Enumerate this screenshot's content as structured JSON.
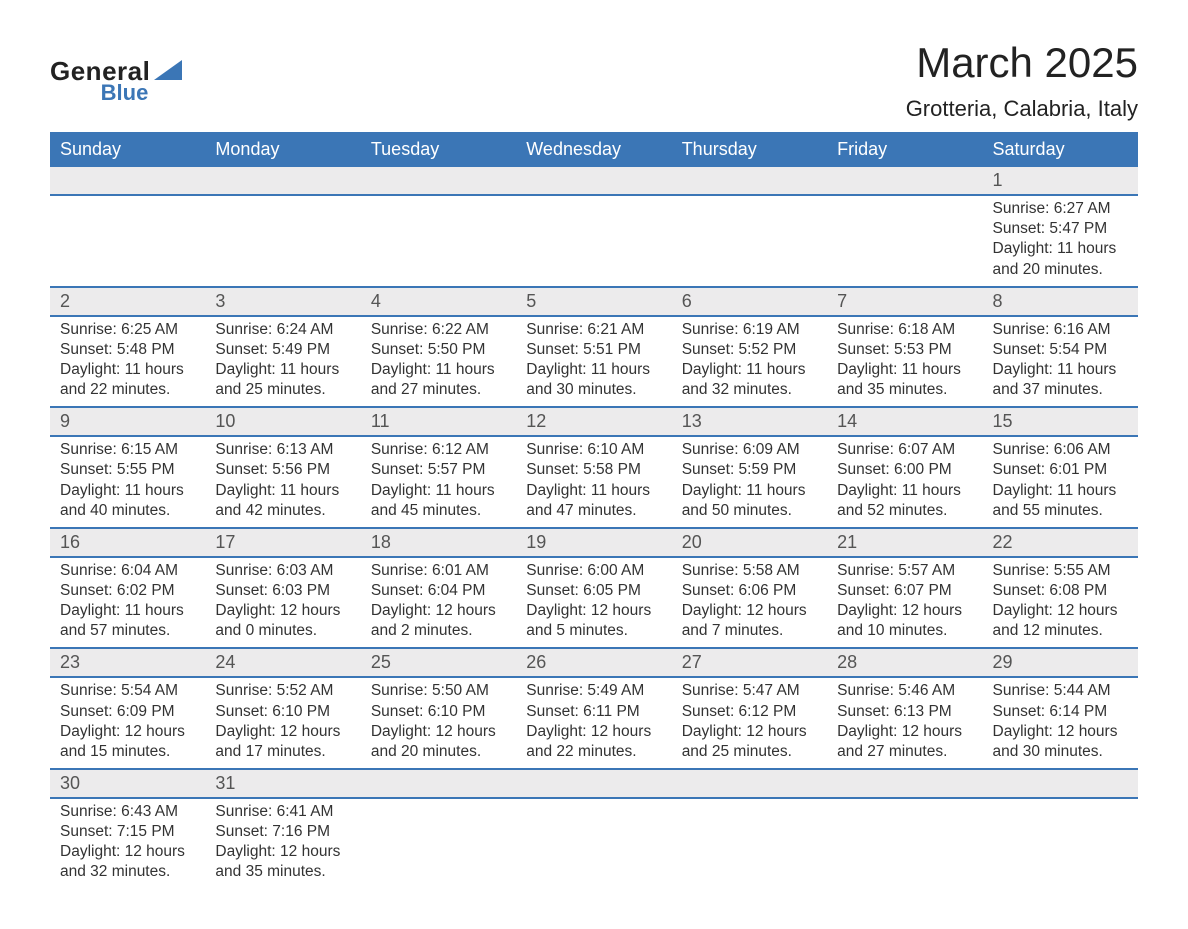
{
  "logo": {
    "general": "General",
    "blue": "Blue",
    "icon_color": "#3b76b6"
  },
  "title": "March 2025",
  "location": "Grotteria, Calabria, Italy",
  "weekdays": [
    "Sunday",
    "Monday",
    "Tuesday",
    "Wednesday",
    "Thursday",
    "Friday",
    "Saturday"
  ],
  "colors": {
    "header_bg": "#3b76b6",
    "header_text": "#ffffff",
    "daynum_bg": "#ecebec",
    "daynum_text": "#555555",
    "body_text": "#333333",
    "row_border": "#3b76b6"
  },
  "weeks": [
    [
      null,
      null,
      null,
      null,
      null,
      null,
      {
        "n": "1",
        "sunrise": "6:27 AM",
        "sunset": "5:47 PM",
        "dl1": "11 hours",
        "dl2": "and 20 minutes."
      }
    ],
    [
      {
        "n": "2",
        "sunrise": "6:25 AM",
        "sunset": "5:48 PM",
        "dl1": "11 hours",
        "dl2": "and 22 minutes."
      },
      {
        "n": "3",
        "sunrise": "6:24 AM",
        "sunset": "5:49 PM",
        "dl1": "11 hours",
        "dl2": "and 25 minutes."
      },
      {
        "n": "4",
        "sunrise": "6:22 AM",
        "sunset": "5:50 PM",
        "dl1": "11 hours",
        "dl2": "and 27 minutes."
      },
      {
        "n": "5",
        "sunrise": "6:21 AM",
        "sunset": "5:51 PM",
        "dl1": "11 hours",
        "dl2": "and 30 minutes."
      },
      {
        "n": "6",
        "sunrise": "6:19 AM",
        "sunset": "5:52 PM",
        "dl1": "11 hours",
        "dl2": "and 32 minutes."
      },
      {
        "n": "7",
        "sunrise": "6:18 AM",
        "sunset": "5:53 PM",
        "dl1": "11 hours",
        "dl2": "and 35 minutes."
      },
      {
        "n": "8",
        "sunrise": "6:16 AM",
        "sunset": "5:54 PM",
        "dl1": "11 hours",
        "dl2": "and 37 minutes."
      }
    ],
    [
      {
        "n": "9",
        "sunrise": "6:15 AM",
        "sunset": "5:55 PM",
        "dl1": "11 hours",
        "dl2": "and 40 minutes."
      },
      {
        "n": "10",
        "sunrise": "6:13 AM",
        "sunset": "5:56 PM",
        "dl1": "11 hours",
        "dl2": "and 42 minutes."
      },
      {
        "n": "11",
        "sunrise": "6:12 AM",
        "sunset": "5:57 PM",
        "dl1": "11 hours",
        "dl2": "and 45 minutes."
      },
      {
        "n": "12",
        "sunrise": "6:10 AM",
        "sunset": "5:58 PM",
        "dl1": "11 hours",
        "dl2": "and 47 minutes."
      },
      {
        "n": "13",
        "sunrise": "6:09 AM",
        "sunset": "5:59 PM",
        "dl1": "11 hours",
        "dl2": "and 50 minutes."
      },
      {
        "n": "14",
        "sunrise": "6:07 AM",
        "sunset": "6:00 PM",
        "dl1": "11 hours",
        "dl2": "and 52 minutes."
      },
      {
        "n": "15",
        "sunrise": "6:06 AM",
        "sunset": "6:01 PM",
        "dl1": "11 hours",
        "dl2": "and 55 minutes."
      }
    ],
    [
      {
        "n": "16",
        "sunrise": "6:04 AM",
        "sunset": "6:02 PM",
        "dl1": "11 hours",
        "dl2": "and 57 minutes."
      },
      {
        "n": "17",
        "sunrise": "6:03 AM",
        "sunset": "6:03 PM",
        "dl1": "12 hours",
        "dl2": "and 0 minutes."
      },
      {
        "n": "18",
        "sunrise": "6:01 AM",
        "sunset": "6:04 PM",
        "dl1": "12 hours",
        "dl2": "and 2 minutes."
      },
      {
        "n": "19",
        "sunrise": "6:00 AM",
        "sunset": "6:05 PM",
        "dl1": "12 hours",
        "dl2": "and 5 minutes."
      },
      {
        "n": "20",
        "sunrise": "5:58 AM",
        "sunset": "6:06 PM",
        "dl1": "12 hours",
        "dl2": "and 7 minutes."
      },
      {
        "n": "21",
        "sunrise": "5:57 AM",
        "sunset": "6:07 PM",
        "dl1": "12 hours",
        "dl2": "and 10 minutes."
      },
      {
        "n": "22",
        "sunrise": "5:55 AM",
        "sunset": "6:08 PM",
        "dl1": "12 hours",
        "dl2": "and 12 minutes."
      }
    ],
    [
      {
        "n": "23",
        "sunrise": "5:54 AM",
        "sunset": "6:09 PM",
        "dl1": "12 hours",
        "dl2": "and 15 minutes."
      },
      {
        "n": "24",
        "sunrise": "5:52 AM",
        "sunset": "6:10 PM",
        "dl1": "12 hours",
        "dl2": "and 17 minutes."
      },
      {
        "n": "25",
        "sunrise": "5:50 AM",
        "sunset": "6:10 PM",
        "dl1": "12 hours",
        "dl2": "and 20 minutes."
      },
      {
        "n": "26",
        "sunrise": "5:49 AM",
        "sunset": "6:11 PM",
        "dl1": "12 hours",
        "dl2": "and 22 minutes."
      },
      {
        "n": "27",
        "sunrise": "5:47 AM",
        "sunset": "6:12 PM",
        "dl1": "12 hours",
        "dl2": "and 25 minutes."
      },
      {
        "n": "28",
        "sunrise": "5:46 AM",
        "sunset": "6:13 PM",
        "dl1": "12 hours",
        "dl2": "and 27 minutes."
      },
      {
        "n": "29",
        "sunrise": "5:44 AM",
        "sunset": "6:14 PM",
        "dl1": "12 hours",
        "dl2": "and 30 minutes."
      }
    ],
    [
      {
        "n": "30",
        "sunrise": "6:43 AM",
        "sunset": "7:15 PM",
        "dl1": "12 hours",
        "dl2": "and 32 minutes."
      },
      {
        "n": "31",
        "sunrise": "6:41 AM",
        "sunset": "7:16 PM",
        "dl1": "12 hours",
        "dl2": "and 35 minutes."
      },
      null,
      null,
      null,
      null,
      null
    ]
  ],
  "labels": {
    "sunrise": "Sunrise: ",
    "sunset": "Sunset: ",
    "daylight": "Daylight: "
  }
}
